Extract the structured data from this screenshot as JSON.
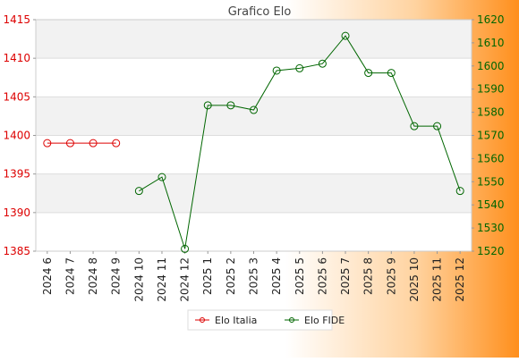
{
  "chart_data": {
    "type": "line",
    "title": "Grafico Elo",
    "categories": [
      "2024 6",
      "2024 7",
      "2024 8",
      "2024 9",
      "2024 10",
      "2024 11",
      "2024 12",
      "2025 1",
      "2025 2",
      "2025 3",
      "2025 4",
      "2025 5",
      "2025 6",
      "2025 7",
      "2025 8",
      "2025 9",
      "2025 10",
      "2025 11",
      "2025 12"
    ],
    "y_left": {
      "ylim": [
        1385,
        1415
      ],
      "ticks": [
        1385,
        1390,
        1395,
        1400,
        1405,
        1410,
        1415
      ]
    },
    "y_right": {
      "ylim": [
        1520,
        1620
      ],
      "ticks": [
        1520,
        1530,
        1540,
        1550,
        1560,
        1570,
        1580,
        1590,
        1600,
        1610,
        1620
      ]
    },
    "series": [
      {
        "name": "Elo Italia",
        "axis": "left",
        "color": "#dd0000",
        "values": [
          1399,
          1399,
          1399,
          1399,
          null,
          null,
          null,
          null,
          null,
          null,
          null,
          null,
          null,
          null,
          null,
          null,
          null,
          null,
          null
        ]
      },
      {
        "name": "Elo FIDE",
        "axis": "right",
        "color": "#006600",
        "values": [
          null,
          null,
          null,
          null,
          1546,
          1552,
          1521,
          1583,
          1583,
          1581,
          1598,
          1599,
          1601,
          1613,
          1597,
          1597,
          1574,
          1574,
          1546
        ]
      }
    ],
    "grid": true,
    "legend": "bottom-center",
    "colors": {
      "left_axis": "#dd0000",
      "right_axis": "#006600",
      "band": "#f2f2f2",
      "grid": "#dddddd"
    }
  }
}
